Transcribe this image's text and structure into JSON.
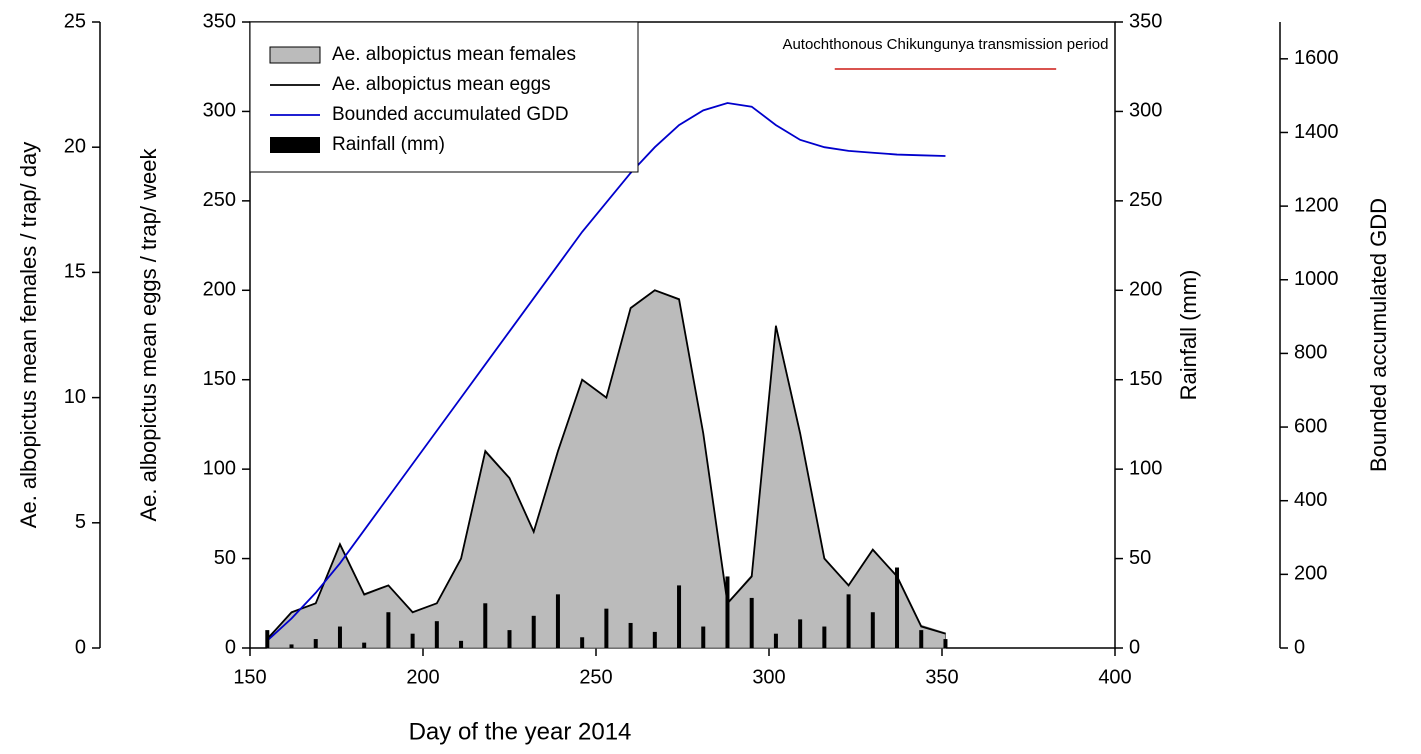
{
  "chart_data": {
    "type": "multi-axis",
    "x_label": "Day of the year 2014",
    "annotation": "Autochthonous Chikungunya transmission period",
    "annotation_range": [
      319,
      383
    ],
    "annotation_color": "#d9534f",
    "xlim": [
      150,
      400
    ],
    "xticks": [
      150,
      200,
      250,
      300,
      350,
      400
    ],
    "x": [
      155,
      162,
      169,
      176,
      183,
      190,
      197,
      204,
      211,
      218,
      225,
      232,
      239,
      246,
      253,
      260,
      267,
      274,
      281,
      288,
      295,
      302,
      309,
      316,
      323,
      330,
      337,
      344,
      351
    ],
    "series": [
      {
        "name": "Ae. albopictus mean females",
        "kind": "area",
        "color": "#bbbbbb",
        "axis": "females",
        "values": [
          0.4,
          1.4,
          1.8,
          4.1,
          2.1,
          2.5,
          1.4,
          1.8,
          3.6,
          7.9,
          6.8,
          4.6,
          7.9,
          10.7,
          10,
          13.6,
          14.3,
          13.9,
          8.6,
          1.8,
          2.9,
          12.9,
          8.6,
          3.6,
          2.5,
          3.9,
          2.9,
          0.9,
          0.6
        ]
      },
      {
        "name": "Ae. albopictus mean eggs",
        "kind": "line",
        "color": "#000000",
        "axis": "eggs",
        "values": [
          5,
          20,
          25,
          58,
          30,
          35,
          20,
          25,
          50,
          110,
          95,
          65,
          110,
          150,
          140,
          190,
          200,
          195,
          120,
          25,
          40,
          180,
          120,
          50,
          35,
          55,
          40,
          12,
          8
        ]
      },
      {
        "name": "Bounded accumulated GDD",
        "kind": "line",
        "color": "#0000cc",
        "axis": "gdd",
        "values": [
          20,
          80,
          150,
          230,
          320,
          410,
          500,
          590,
          680,
          770,
          860,
          950,
          1040,
          1130,
          1210,
          1290,
          1360,
          1420,
          1460,
          1480,
          1470,
          1420,
          1380,
          1360,
          1350,
          1345,
          1340,
          1338,
          1336
        ]
      },
      {
        "name": "Rainfall (mm)",
        "kind": "bar",
        "color": "#000000",
        "axis": "rain",
        "values": [
          10,
          2,
          5,
          12,
          3,
          20,
          8,
          15,
          4,
          25,
          10,
          18,
          30,
          6,
          22,
          14,
          9,
          35,
          12,
          40,
          28,
          8,
          16,
          12,
          30,
          20,
          45,
          10,
          5
        ]
      }
    ],
    "axes": {
      "females": {
        "label": "Ae. albopictus mean females / trap/ day",
        "ylim": [
          0,
          25
        ],
        "yticks": [
          0,
          5,
          10,
          15,
          20,
          25
        ]
      },
      "eggs": {
        "label": "Ae. albopictus mean eggs / trap/ week",
        "ylim": [
          0,
          350
        ],
        "yticks": [
          0,
          50,
          100,
          150,
          200,
          250,
          300,
          350
        ]
      },
      "rain": {
        "label": "Rainfall (mm)",
        "ylim": [
          0,
          350
        ],
        "yticks": [
          0,
          50,
          100,
          150,
          200,
          250,
          300,
          350
        ]
      },
      "gdd": {
        "label": "Bounded accumulated GDD",
        "ylim": [
          0,
          1700
        ],
        "yticks": [
          0,
          200,
          400,
          600,
          800,
          1000,
          1200,
          1400,
          1600
        ]
      }
    }
  }
}
